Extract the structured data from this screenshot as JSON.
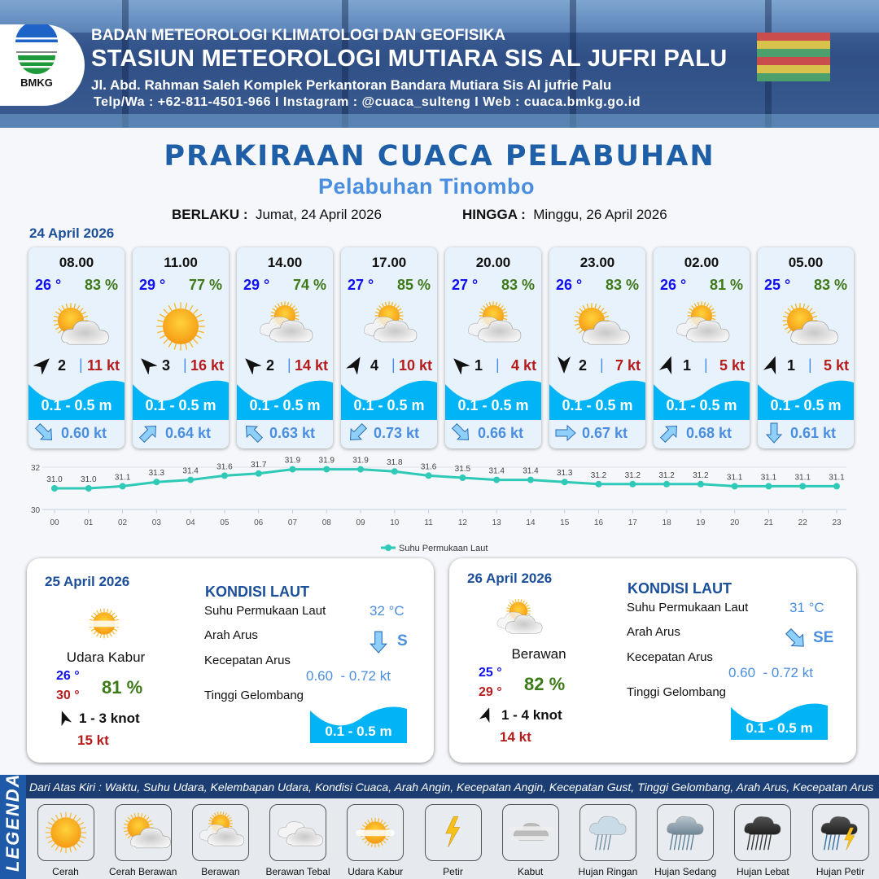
{
  "header": {
    "logo_text": "BMKG",
    "agency": "BADAN METEOROLOGI KLIMATOLOGI DAN GEOFISIKA",
    "station": "STASIUN METEOROLOGI MUTIARA SIS AL JUFRI PALU",
    "address": "Jl. Abd. Rahman Saleh Komplek Perkantoran Bandara Mutiara Sis Al jufrie Palu",
    "contact": "Telp/Wa : +62-811-4501-966  I  Instagram : @cuaca_sulteng  I  Web : cuaca.bmkg.go.id"
  },
  "title": "PRAKIRAAN CUACA PELABUHAN",
  "subtitle": "Pelabuhan Tinombo",
  "validity": {
    "from_label": "BERLAKU :",
    "from": "Jumat, 24 April 2026",
    "to_label": "HINGGA :",
    "to": "Minggu, 26 April 2026"
  },
  "day1_date": "24 April 2026",
  "cards": [
    {
      "time": "08.00",
      "temp": "26 °",
      "hum": "83 %",
      "weather": "cerah-berawan",
      "wind_dir_deg": 45,
      "wind": "2",
      "gust": "11 kt",
      "wave": "0.1 - 0.5 m",
      "current_dir_deg": 135,
      "current": "0.60 kt"
    },
    {
      "time": "11.00",
      "temp": "29 °",
      "hum": "77 %",
      "weather": "cerah",
      "wind_dir_deg": -45,
      "wind": "3",
      "gust": "16 kt",
      "wave": "0.1 - 0.5 m",
      "current_dir_deg": 45,
      "current": "0.64 kt"
    },
    {
      "time": "14.00",
      "temp": "29 °",
      "hum": "74 %",
      "weather": "berawan",
      "wind_dir_deg": -45,
      "wind": "2",
      "gust": "14 kt",
      "wave": "0.1 - 0.5 m",
      "current_dir_deg": -45,
      "current": "0.63 kt"
    },
    {
      "time": "17.00",
      "temp": "27 °",
      "hum": "85 %",
      "weather": "berawan",
      "wind_dir_deg": 30,
      "wind": "4",
      "gust": "10 kt",
      "wave": "0.1 - 0.5 m",
      "current_dir_deg": 225,
      "current": "0.73 kt"
    },
    {
      "time": "20.00",
      "temp": "27 °",
      "hum": "83 %",
      "weather": "berawan",
      "wind_dir_deg": -45,
      "wind": "1",
      "gust": "4 kt",
      "wave": "0.1 - 0.5 m",
      "current_dir_deg": 135,
      "current": "0.66 kt"
    },
    {
      "time": "23.00",
      "temp": "26 °",
      "hum": "83 %",
      "weather": "cerah-berawan",
      "wind_dir_deg": 180,
      "wind": "2",
      "gust": "7 kt",
      "wave": "0.1 - 0.5 m",
      "current_dir_deg": 90,
      "current": "0.67 kt"
    },
    {
      "time": "02.00",
      "temp": "26 °",
      "hum": "81 %",
      "weather": "berawan",
      "wind_dir_deg": 20,
      "wind": "1",
      "gust": "5 kt",
      "wave": "0.1 - 0.5 m",
      "current_dir_deg": 45,
      "current": "0.68 kt"
    },
    {
      "time": "05.00",
      "temp": "25 °",
      "hum": "83 %",
      "weather": "cerah-berawan",
      "wind_dir_deg": 20,
      "wind": "1",
      "gust": "5 kt",
      "wave": "0.1 - 0.5 m",
      "current_dir_deg": 180,
      "current": "0.61 kt"
    }
  ],
  "chart_data": {
    "type": "line",
    "x": [
      "00",
      "01",
      "02",
      "03",
      "04",
      "05",
      "06",
      "07",
      "08",
      "09",
      "10",
      "11",
      "12",
      "13",
      "14",
      "15",
      "16",
      "17",
      "18",
      "19",
      "20",
      "21",
      "22",
      "23"
    ],
    "series": [
      {
        "name": "Suhu Permukaan Laut",
        "values": [
          31.0,
          31.0,
          31.1,
          31.3,
          31.4,
          31.6,
          31.7,
          31.9,
          31.9,
          31.9,
          31.8,
          31.6,
          31.5,
          31.4,
          31.4,
          31.3,
          31.2,
          31.2,
          31.2,
          31.2,
          31.1,
          31.1,
          31.1,
          31.1
        ]
      }
    ],
    "y_ticks": [
      "30",
      "32"
    ],
    "ylim": [
      30,
      32
    ],
    "grid": true,
    "legend": "bottom-center",
    "color": "#2ec9b7"
  },
  "days": [
    {
      "date": "25 April 2026",
      "weather": "udara-kabur",
      "weather_label": "Udara Kabur",
      "tmin": "26 °",
      "tmax": "30 °",
      "hum": "81 %",
      "wind_dir_deg": -20,
      "wind": "1 - 3 knot",
      "gust": "15 kt",
      "sea_title": "KONDISI LAUT",
      "sst_label": "Suhu Permukaan Laut",
      "sst": "32 °C",
      "dir_label": "Arah Arus",
      "current_dir_deg": 180,
      "dir": "S",
      "speed_label": "Kecepatan Arus",
      "speed": "0.60  - 0.72 kt",
      "wave_label": "Tinggi Gelombang",
      "wave": "0.1 - 0.5 m"
    },
    {
      "date": "26 April 2026",
      "weather": "berawan",
      "weather_label": "Berawan",
      "tmin": "25 °",
      "tmax": "29 °",
      "hum": "82 %",
      "wind_dir_deg": 20,
      "wind": "1 - 4 knot",
      "gust": "14 kt",
      "sea_title": "KONDISI LAUT",
      "sst_label": "Suhu Permukaan Laut",
      "sst": "31 °C",
      "dir_label": "Arah Arus",
      "current_dir_deg": 135,
      "dir": "SE",
      "speed_label": "Kecepatan Arus",
      "speed": "0.60  - 0.72 kt",
      "wave_label": "Tinggi Gelombang",
      "wave": "0.1 - 0.5 m"
    }
  ],
  "legend": {
    "title": "LEGENDA",
    "description": "Dari Atas Kiri : Waktu, Suhu Udara, Kelembapan Udara, Kondisi Cuaca, Arah Angin, Kecepatan Angin, Kecepatan Gust, Tinggi Gelombang, Arah Arus, Kecepatan Arus",
    "items": [
      {
        "icon": "cerah",
        "label": "Cerah"
      },
      {
        "icon": "cerah-berawan",
        "label": "Cerah Berawan"
      },
      {
        "icon": "berawan",
        "label": "Berawan"
      },
      {
        "icon": "berawan-tebal",
        "label": "Berawan Tebal"
      },
      {
        "icon": "udara-kabur",
        "label": "Udara Kabur"
      },
      {
        "icon": "petir",
        "label": "Petir"
      },
      {
        "icon": "kabut",
        "label": "Kabut"
      },
      {
        "icon": "hujan-ringan",
        "label": "Hujan Ringan"
      },
      {
        "icon": "hujan-sedang",
        "label": "Hujan Sedang"
      },
      {
        "icon": "hujan-lebat",
        "label": "Hujan Lebat"
      },
      {
        "icon": "hujan-petir",
        "label": "Hujan Petir"
      }
    ]
  },
  "colors": {
    "temp": "#1010ee",
    "humidity": "#3c7a18",
    "gust": "#b71c1c",
    "wave": "#00b4f5",
    "current": "#4a8ee0",
    "title": "#1f5fa8"
  }
}
